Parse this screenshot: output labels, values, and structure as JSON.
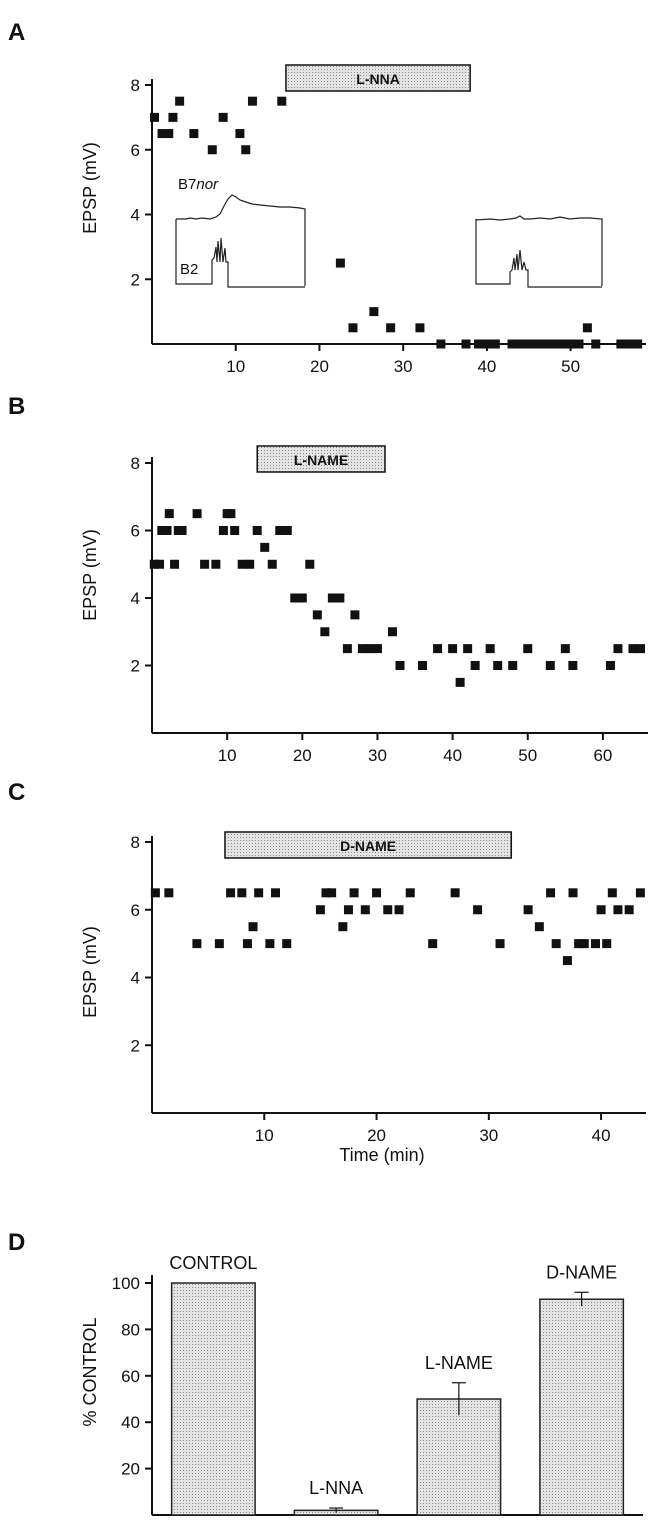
{
  "panels": [
    {
      "letter": "A",
      "drug": "L-NNA",
      "ylabel": "EPSP (mV)",
      "xlabel": ""
    },
    {
      "letter": "B",
      "drug": "L-NAME",
      "ylabel": "EPSP (mV)",
      "xlabel": ""
    },
    {
      "letter": "C",
      "drug": "D-NAME",
      "ylabel": "EPSP (mV)",
      "xlabel": "Time (min)"
    },
    {
      "letter": "D",
      "drug": "",
      "ylabel": "% CONTROL",
      "xlabel": ""
    }
  ],
  "inset": {
    "label_top_prefix": "B7",
    "label_top_italic": "nor",
    "label_bottom": "B2"
  },
  "colors": {
    "marker": "#111111",
    "drug_bar_fill": "#d6d6d6",
    "bar_fill": "#cfcfcf"
  },
  "chart_data": [
    {
      "type": "scatter",
      "panel": "A",
      "xlim": [
        0,
        59
      ],
      "ylim": [
        0,
        8
      ],
      "xticks": [
        10,
        20,
        30,
        40,
        50
      ],
      "yticks": [
        2,
        4,
        6,
        8
      ],
      "ylabel": "EPSP (mV)",
      "drug_period": {
        "label": "L-NNA",
        "x": [
          16,
          38
        ]
      },
      "x": [
        0.3,
        1.2,
        2,
        2.5,
        3.3,
        5,
        7.2,
        8.5,
        10.5,
        11.2,
        12,
        15.5,
        22.5,
        24,
        26.5,
        28.5,
        32,
        34.5,
        37.5,
        39,
        40,
        41,
        43,
        44,
        45,
        46,
        47,
        48,
        49,
        50,
        51,
        52,
        53,
        56,
        57,
        58
      ],
      "y": [
        7,
        6.5,
        6.5,
        7,
        7.5,
        6.5,
        6,
        7,
        6.5,
        6,
        7.5,
        7.5,
        2.5,
        0.5,
        1,
        0.5,
        0.5,
        0,
        0,
        0,
        0,
        0,
        0,
        0,
        0,
        0,
        0,
        0,
        0,
        0,
        0,
        0.5,
        0,
        0,
        0,
        0
      ]
    },
    {
      "type": "scatter",
      "panel": "B",
      "xlim": [
        0,
        66
      ],
      "ylim": [
        0,
        8
      ],
      "xticks": [
        10,
        20,
        30,
        40,
        50,
        60
      ],
      "yticks": [
        2,
        4,
        6,
        8
      ],
      "ylabel": "EPSP (mV)",
      "drug_period": {
        "label": "L-NAME",
        "x": [
          14,
          31
        ]
      },
      "x": [
        0.3,
        1,
        1.3,
        2,
        2.3,
        3,
        3.5,
        4,
        6,
        7,
        8.5,
        9.5,
        10,
        10.5,
        11,
        12,
        13,
        14,
        15,
        16,
        17,
        18,
        19,
        20,
        21,
        22,
        23,
        24,
        25,
        26,
        27,
        28,
        29,
        30,
        32,
        33,
        36,
        38,
        40,
        41,
        42,
        43,
        45,
        46,
        48,
        50,
        53,
        55,
        56,
        61,
        62,
        64,
        65
      ],
      "y": [
        5,
        5,
        6,
        6,
        6.5,
        5,
        6,
        6,
        6.5,
        5,
        5,
        6,
        6.5,
        6.5,
        6,
        5,
        5,
        6,
        5.5,
        5,
        6,
        6,
        4,
        4,
        5,
        3.5,
        3,
        4,
        4,
        2.5,
        3.5,
        2.5,
        2.5,
        2.5,
        3,
        2,
        2,
        2.5,
        2.5,
        1.5,
        2.5,
        2,
        2.5,
        2,
        2,
        2.5,
        2,
        2.5,
        2,
        2,
        2.5,
        2.5,
        2.5
      ]
    },
    {
      "type": "scatter",
      "panel": "C",
      "xlim": [
        0,
        44
      ],
      "ylim": [
        0,
        8
      ],
      "xticks": [
        10,
        20,
        30,
        40
      ],
      "yticks": [
        2,
        4,
        6,
        8
      ],
      "ylabel": "EPSP (mV)",
      "xlabel": "Time (min)",
      "drug_period": {
        "label": "D-NAME",
        "x": [
          6.5,
          32
        ]
      },
      "x": [
        0.3,
        1.5,
        4,
        6,
        7,
        8,
        8.5,
        9,
        9.5,
        10.5,
        11,
        12,
        15,
        15.5,
        16,
        17,
        17.5,
        18,
        19,
        20,
        21,
        22,
        23,
        25,
        27,
        29,
        31,
        33.5,
        34.5,
        35.5,
        36,
        37,
        37.5,
        38,
        38.5,
        39.5,
        40,
        40.5,
        41,
        41.5,
        42.5,
        43.5
      ],
      "y": [
        6.5,
        6.5,
        5,
        5,
        6.5,
        6.5,
        5,
        5.5,
        6.5,
        5,
        6.5,
        5,
        6,
        6.5,
        6.5,
        5.5,
        6,
        6.5,
        6,
        6.5,
        6,
        6,
        6.5,
        5,
        6.5,
        6,
        5,
        6,
        5.5,
        6.5,
        5,
        4.5,
        6.5,
        5,
        5,
        5,
        6,
        5,
        6.5,
        6,
        6,
        6.5
      ]
    },
    {
      "type": "bar",
      "panel": "D",
      "categories": [
        "CONTROL",
        "L-NNA",
        "L-NAME",
        "D-NAME"
      ],
      "values": [
        100,
        2,
        50,
        93
      ],
      "errors": [
        0,
        1,
        7,
        3
      ],
      "ylim": [
        0,
        100
      ],
      "yticks": [
        20,
        40,
        60,
        80,
        100
      ],
      "ylabel": "% CONTROL"
    }
  ]
}
